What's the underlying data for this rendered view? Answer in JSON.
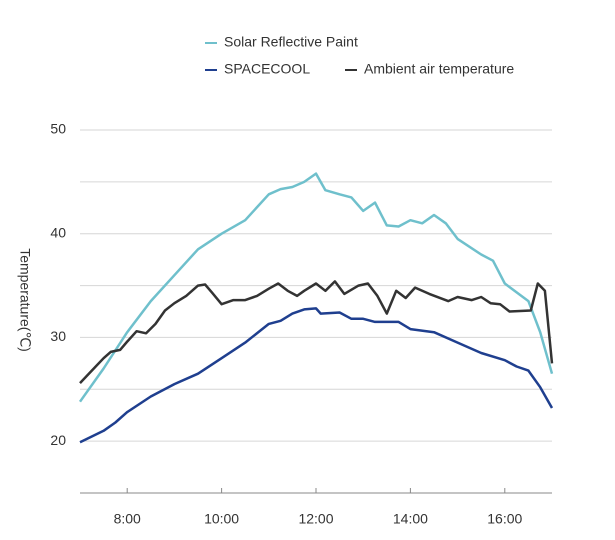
{
  "chart_data": {
    "type": "line",
    "y_label": "Temperature(℃)",
    "xlim": [
      7,
      17
    ],
    "xticks": [
      {
        "value": 8,
        "label": "8:00"
      },
      {
        "value": 10,
        "label": "10:00"
      },
      {
        "value": 12,
        "label": "12:00"
      },
      {
        "value": 14,
        "label": "14:00"
      },
      {
        "value": 16,
        "label": "16:00"
      }
    ],
    "ylim": [
      15,
      50
    ],
    "yticks": [
      20,
      30,
      40,
      50
    ],
    "grid": true,
    "grid_lines": [
      15,
      20,
      25,
      30,
      35,
      40,
      45,
      50
    ],
    "series": [
      {
        "name": "Solar Reflective Paint",
        "color": "#6fc0cc",
        "x": [
          7,
          7.5,
          8,
          8.5,
          9,
          9.5,
          10,
          10.5,
          11,
          11.25,
          11.5,
          11.75,
          12,
          12.2,
          12.5,
          12.75,
          13,
          13.25,
          13.5,
          13.75,
          14,
          14.25,
          14.5,
          14.75,
          15,
          15.5,
          15.75,
          16,
          16.5,
          16.75,
          17
        ],
        "values": [
          23.8,
          27,
          30.5,
          33.5,
          36,
          38.5,
          40,
          41.3,
          43.8,
          44.3,
          44.5,
          45,
          45.8,
          44.2,
          43.8,
          43.5,
          42.2,
          43,
          40.8,
          40.7,
          41.3,
          41,
          41.8,
          41,
          39.5,
          38,
          37.4,
          35.2,
          33.5,
          30.5,
          26.5
        ]
      },
      {
        "name": "SPACECOOL",
        "color": "#1f3f8f",
        "x": [
          7,
          7.5,
          7.75,
          8,
          8.5,
          9,
          9.5,
          10,
          10.5,
          11,
          11.25,
          11.5,
          11.75,
          12,
          12.1,
          12.5,
          12.75,
          13,
          13.25,
          13.75,
          14,
          14.5,
          15,
          15.5,
          16,
          16.25,
          16.5,
          16.75,
          17
        ],
        "values": [
          19.9,
          21,
          21.8,
          22.8,
          24.3,
          25.5,
          26.5,
          28,
          29.5,
          31.3,
          31.6,
          32.3,
          32.7,
          32.8,
          32.3,
          32.4,
          31.8,
          31.8,
          31.5,
          31.5,
          30.8,
          30.5,
          29.5,
          28.5,
          27.8,
          27.2,
          26.8,
          25.2,
          23.2
        ]
      },
      {
        "name": "Ambient air temperature",
        "color": "#333333",
        "x": [
          7,
          7.25,
          7.5,
          7.65,
          7.85,
          8,
          8.2,
          8.4,
          8.6,
          8.8,
          9,
          9.25,
          9.5,
          9.65,
          9.8,
          10,
          10.25,
          10.5,
          10.75,
          11,
          11.2,
          11.4,
          11.6,
          11.75,
          12,
          12.2,
          12.4,
          12.6,
          12.9,
          13.1,
          13.3,
          13.5,
          13.7,
          13.9,
          14.1,
          14.4,
          14.8,
          15,
          15.3,
          15.5,
          15.7,
          15.9,
          16.1,
          16.55,
          16.7,
          16.85,
          17
        ],
        "values": [
          25.6,
          26.8,
          28,
          28.6,
          28.8,
          29.6,
          30.6,
          30.4,
          31.3,
          32.6,
          33.3,
          34,
          35,
          35.1,
          34.3,
          33.2,
          33.6,
          33.6,
          34,
          34.7,
          35.2,
          34.5,
          34,
          34.5,
          35.2,
          34.5,
          35.4,
          34.2,
          35,
          35.2,
          34,
          32.3,
          34.5,
          33.8,
          34.8,
          34.2,
          33.5,
          33.9,
          33.6,
          33.9,
          33.3,
          33.2,
          32.5,
          32.6,
          35.2,
          34.5,
          27.5
        ]
      }
    ]
  }
}
